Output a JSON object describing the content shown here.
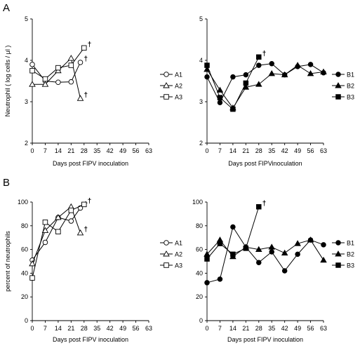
{
  "panel_labels": {
    "top": "A",
    "bottom": "B"
  },
  "chart_data": [
    {
      "type": "line",
      "id": "A-left",
      "title": "",
      "xlabel": "Days post FIPV inoculation",
      "ylabel": "Neutrophil ( log cells / μl )",
      "xlim": [
        0,
        63
      ],
      "ylim": [
        2,
        5
      ],
      "xticks": [
        "0",
        "7",
        "14",
        "21",
        "28",
        "35",
        "42",
        "49",
        "56",
        "63"
      ],
      "yticks": [
        "2",
        "3",
        "4",
        "5"
      ],
      "grid": false,
      "legend_position": "right",
      "series": [
        {
          "name": "A1",
          "marker": "circle-open",
          "x": [
            0,
            7,
            14,
            21,
            26
          ],
          "y": [
            3.9,
            3.5,
            3.47,
            3.48,
            3.95
          ],
          "dagger": "†"
        },
        {
          "name": "A2",
          "marker": "triangle-open",
          "x": [
            0,
            7,
            14,
            21,
            26
          ],
          "y": [
            3.42,
            3.42,
            3.75,
            4.05,
            3.08
          ],
          "dagger": "†"
        },
        {
          "name": "A3",
          "marker": "square-open",
          "x": [
            0,
            7,
            14,
            21,
            28
          ],
          "y": [
            3.75,
            3.55,
            3.82,
            3.88,
            4.3
          ],
          "dagger": "†"
        }
      ]
    },
    {
      "type": "line",
      "id": "A-right",
      "title": "",
      "xlabel": "Days post  FIPVinoculation",
      "ylabel": "",
      "xlim": [
        0,
        63
      ],
      "ylim": [
        2,
        5
      ],
      "xticks": [
        "0",
        "7",
        "14",
        "21",
        "28",
        "35",
        "42",
        "49",
        "56",
        "63"
      ],
      "yticks": [
        "2",
        "3",
        "4",
        "5"
      ],
      "grid": false,
      "legend_position": "right",
      "series": [
        {
          "name": "B1",
          "marker": "circle-filled",
          "x": [
            0,
            7,
            14,
            21,
            28,
            35,
            42,
            49,
            56,
            63
          ],
          "y": [
            3.6,
            2.98,
            3.6,
            3.65,
            3.88,
            3.92,
            3.65,
            3.85,
            3.9,
            3.7
          ]
        },
        {
          "name": "B2",
          "marker": "triangle-filled",
          "x": [
            0,
            7,
            14,
            21,
            28,
            35,
            42,
            49,
            56,
            63
          ],
          "y": [
            3.78,
            3.28,
            2.85,
            3.35,
            3.42,
            3.68,
            3.65,
            3.88,
            3.68,
            3.72
          ]
        },
        {
          "name": "B3",
          "marker": "square-filled",
          "x": [
            0,
            7,
            14,
            21,
            28
          ],
          "y": [
            3.88,
            3.1,
            2.82,
            3.45,
            4.08
          ],
          "dagger": "†"
        }
      ]
    },
    {
      "type": "line",
      "id": "B-left",
      "title": "",
      "xlabel": "Days post FIPV inoculation",
      "ylabel": "percent of neutrophils",
      "xlim": [
        0,
        63
      ],
      "ylim": [
        0,
        100
      ],
      "xticks": [
        "0",
        "7",
        "14",
        "21",
        "28",
        "35",
        "42",
        "49",
        "56",
        "63"
      ],
      "yticks": [
        "0",
        "20",
        "40",
        "60",
        "80",
        "100"
      ],
      "grid": false,
      "legend_position": "right",
      "series": [
        {
          "name": "A1",
          "marker": "circle-open",
          "x": [
            0,
            7,
            14,
            21,
            26
          ],
          "y": [
            51,
            66,
            87,
            84,
            95
          ],
          "dagger": "†"
        },
        {
          "name": "A2",
          "marker": "triangle-open",
          "x": [
            0,
            7,
            14,
            21,
            26
          ],
          "y": [
            48,
            76,
            87,
            96,
            74
          ],
          "dagger": "†"
        },
        {
          "name": "A3",
          "marker": "square-open",
          "x": [
            0,
            7,
            14,
            21,
            28
          ],
          "y": [
            36,
            83,
            75,
            93,
            98
          ],
          "dagger": "†"
        }
      ]
    },
    {
      "type": "line",
      "id": "B-right",
      "title": "",
      "xlabel": "Days post FIPV inoculation",
      "ylabel": "",
      "xlim": [
        0,
        63
      ],
      "ylim": [
        0,
        100
      ],
      "xticks": [
        "0",
        "7",
        "14",
        "21",
        "28",
        "35",
        "42",
        "49",
        "56",
        "63"
      ],
      "yticks": [
        "0",
        "20",
        "40",
        "60",
        "80",
        "100"
      ],
      "grid": false,
      "legend_position": "right",
      "series": [
        {
          "name": "B1",
          "marker": "circle-filled",
          "x": [
            0,
            7,
            14,
            21,
            28,
            35,
            42,
            49,
            56,
            63
          ],
          "y": [
            32,
            35,
            79,
            62,
            49,
            58,
            42,
            56,
            68,
            64
          ]
        },
        {
          "name": "B2",
          "marker": "triangle-filled",
          "x": [
            0,
            7,
            14,
            21,
            28,
            35,
            42,
            49,
            56,
            63
          ],
          "y": [
            56,
            68,
            54,
            62,
            60,
            62,
            57,
            65,
            68,
            51
          ]
        },
        {
          "name": "B3",
          "marker": "square-filled",
          "x": [
            0,
            7,
            14,
            21,
            28
          ],
          "y": [
            52,
            65,
            56,
            61,
            96
          ],
          "dagger": "†"
        }
      ]
    }
  ]
}
